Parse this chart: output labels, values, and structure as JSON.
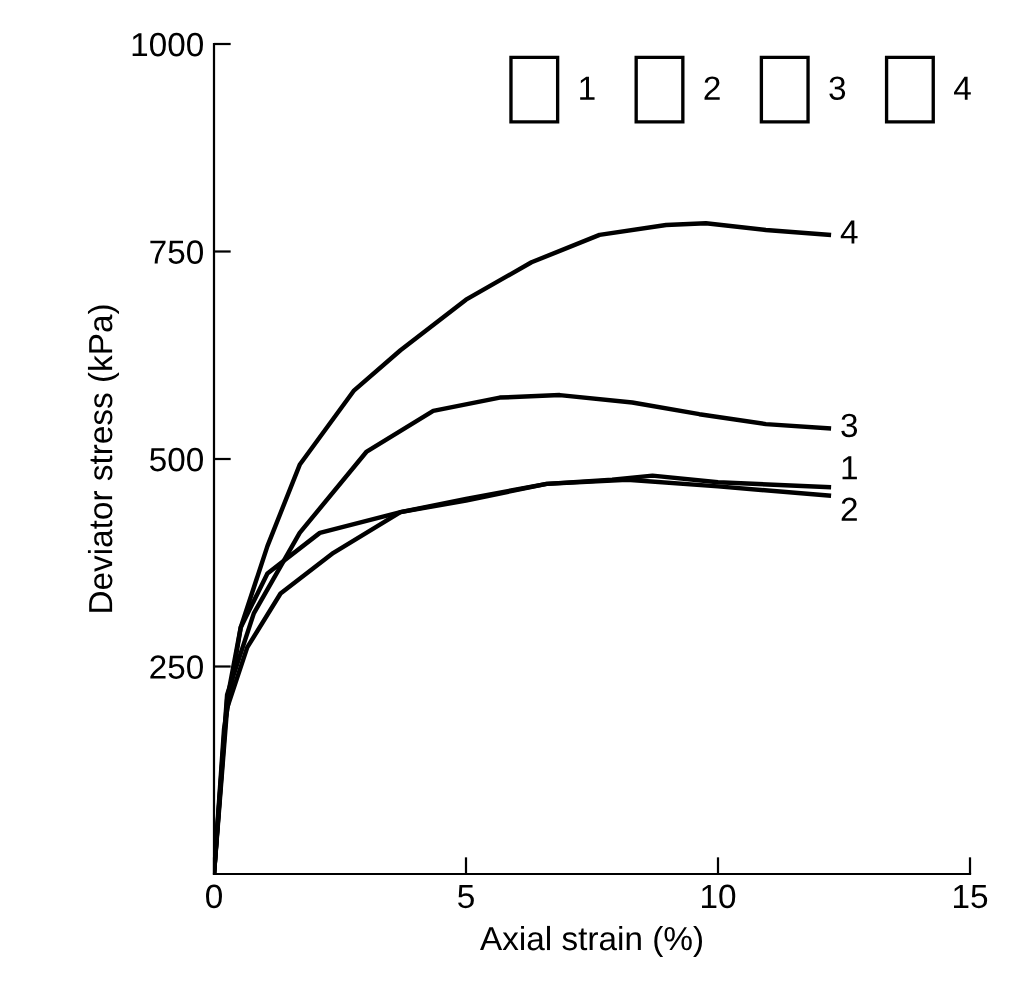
{
  "chart_data": {
    "type": "line",
    "xlabel": "Axial strain (%)",
    "ylabel": "Deviator stress (kPa)",
    "xlim": [
      0,
      15
    ],
    "ylim": [
      0,
      1000
    ],
    "xticks": [
      0,
      5,
      10,
      15
    ],
    "yticks": [
      250,
      500,
      750,
      1000
    ],
    "grid": false,
    "legend": "top right",
    "marker": "none",
    "line_style": "solid",
    "series": [
      {
        "name": "1",
        "color": "#000000",
        "x": [
          0,
          0.26,
          0.53,
          1.06,
          2.1,
          3.7,
          5.0,
          6.6,
          7.9,
          8.7,
          10.0,
          12.2
        ],
        "values": [
          0,
          210,
          297,
          362,
          411,
          436,
          452,
          470,
          475,
          480,
          472,
          466
        ]
      },
      {
        "name": "2",
        "color": "#000000",
        "x": [
          0,
          0.26,
          0.66,
          1.32,
          2.37,
          3.7,
          5.0,
          6.6,
          8.2,
          10.0,
          12.2
        ],
        "values": [
          0,
          200,
          273,
          338,
          387,
          436,
          450,
          470,
          475,
          467,
          456
        ]
      },
      {
        "name": "3",
        "color": "#000000",
        "x": [
          0,
          0.26,
          0.79,
          1.7,
          3.03,
          4.35,
          5.67,
          6.86,
          8.3,
          9.63,
          10.95,
          12.2
        ],
        "values": [
          0,
          216,
          314,
          411,
          509,
          558,
          574,
          577,
          568,
          554,
          542,
          537
        ]
      },
      {
        "name": "4",
        "color": "#000000",
        "x": [
          0,
          0.2,
          0.53,
          1.06,
          1.7,
          2.77,
          3.7,
          5.0,
          6.3,
          7.65,
          8.97,
          9.76,
          10.95,
          12.2
        ],
        "values": [
          0,
          175,
          297,
          395,
          493,
          582,
          631,
          692,
          737,
          770,
          782,
          784,
          776,
          770
        ]
      }
    ]
  }
}
